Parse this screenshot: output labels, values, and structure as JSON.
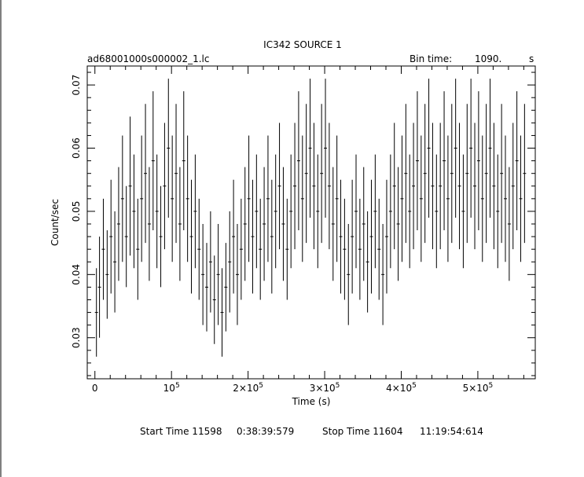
{
  "header": {
    "title": "IC342 SOURCE 1",
    "file": "ad68001000s000002_1.lc",
    "bin_label": "Bin time:",
    "bin_value": "1090.",
    "bin_unit": "s"
  },
  "footer": {
    "start_label": "Start Time 11598",
    "start_time": "0:38:39:579",
    "stop_label": "Stop Time 11604",
    "stop_time": "11:19:54:614"
  },
  "chart_data": {
    "type": "scatter",
    "title": "IC342 SOURCE 1",
    "xlabel": "Time (s)",
    "ylabel": "Count/sec",
    "xlim": [
      -10000,
      575000
    ],
    "ylim": [
      0.0235,
      0.073
    ],
    "x_ticks": [
      {
        "value": 0,
        "label": "0"
      },
      {
        "value": 100000,
        "label": "10",
        "exp": "5"
      },
      {
        "value": 200000,
        "label": "2×10",
        "exp": "5"
      },
      {
        "value": 300000,
        "label": "3×10",
        "exp": "5"
      },
      {
        "value": 400000,
        "label": "4×10",
        "exp": "5"
      },
      {
        "value": 500000,
        "label": "5×10",
        "exp": "5"
      }
    ],
    "y_ticks": [
      {
        "value": 0.03,
        "label": "0.03"
      },
      {
        "value": 0.04,
        "label": "0.04"
      },
      {
        "value": 0.05,
        "label": "0.05"
      },
      {
        "value": 0.06,
        "label": "0.06"
      },
      {
        "value": 0.07,
        "label": "0.07"
      }
    ],
    "grid": false,
    "error_bars": true,
    "series": [
      {
        "x": [
          2000,
          6000,
          11000,
          16000,
          21000,
          26000,
          31000,
          36000,
          41000,
          46000,
          51000,
          56000,
          61000,
          66000,
          71000,
          76000,
          81000,
          86000,
          91000,
          96000,
          101000,
          106000,
          111000,
          116000,
          121000,
          126000,
          131000,
          136000,
          141000,
          146000,
          151000,
          156000,
          161000,
          166000,
          171000,
          176000,
          181000,
          186000,
          191000,
          196000,
          201000,
          206000,
          211000,
          216000,
          221000,
          226000,
          231000,
          236000,
          241000,
          246000,
          251000,
          256000,
          261000,
          266000,
          271000,
          276000,
          281000,
          286000,
          291000,
          296000,
          301000,
          306000,
          311000,
          316000,
          321000,
          326000,
          331000,
          336000,
          341000,
          346000,
          351000,
          356000,
          361000,
          366000,
          371000,
          376000,
          381000,
          386000,
          391000,
          396000,
          401000,
          406000,
          411000,
          416000,
          421000,
          426000,
          431000,
          436000,
          441000,
          446000,
          451000,
          456000,
          461000,
          466000,
          471000,
          476000,
          481000,
          486000,
          491000,
          496000,
          501000,
          506000,
          511000,
          516000,
          521000,
          526000,
          531000,
          536000,
          541000,
          546000,
          551000,
          556000,
          561000
        ],
        "y": [
          0.034,
          0.038,
          0.044,
          0.04,
          0.046,
          0.042,
          0.048,
          0.052,
          0.046,
          0.054,
          0.05,
          0.044,
          0.052,
          0.056,
          0.048,
          0.058,
          0.05,
          0.046,
          0.054,
          0.06,
          0.052,
          0.056,
          0.048,
          0.058,
          0.052,
          0.046,
          0.05,
          0.044,
          0.04,
          0.038,
          0.042,
          0.036,
          0.04,
          0.034,
          0.038,
          0.042,
          0.046,
          0.04,
          0.044,
          0.048,
          0.052,
          0.046,
          0.05,
          0.044,
          0.048,
          0.052,
          0.046,
          0.05,
          0.054,
          0.048,
          0.044,
          0.05,
          0.054,
          0.058,
          0.052,
          0.056,
          0.06,
          0.054,
          0.05,
          0.056,
          0.06,
          0.054,
          0.048,
          0.052,
          0.046,
          0.044,
          0.04,
          0.046,
          0.05,
          0.044,
          0.048,
          0.042,
          0.046,
          0.05,
          0.044,
          0.04,
          0.046,
          0.05,
          0.054,
          0.048,
          0.052,
          0.056,
          0.05,
          0.054,
          0.058,
          0.052,
          0.056,
          0.06,
          0.054,
          0.05,
          0.054,
          0.058,
          0.052,
          0.056,
          0.06,
          0.054,
          0.05,
          0.056,
          0.06,
          0.054,
          0.058,
          0.052,
          0.056,
          0.06,
          0.054,
          0.05,
          0.056,
          0.052,
          0.048,
          0.054,
          0.058,
          0.052,
          0.056
        ],
        "err": [
          0.007,
          0.008,
          0.008,
          0.007,
          0.009,
          0.008,
          0.009,
          0.01,
          0.008,
          0.011,
          0.009,
          0.008,
          0.01,
          0.011,
          0.009,
          0.011,
          0.009,
          0.008,
          0.01,
          0.011,
          0.01,
          0.011,
          0.009,
          0.011,
          0.01,
          0.009,
          0.009,
          0.008,
          0.008,
          0.007,
          0.008,
          0.007,
          0.008,
          0.007,
          0.007,
          0.008,
          0.009,
          0.008,
          0.008,
          0.009,
          0.01,
          0.009,
          0.009,
          0.008,
          0.009,
          0.01,
          0.009,
          0.009,
          0.01,
          0.009,
          0.008,
          0.009,
          0.01,
          0.011,
          0.01,
          0.011,
          0.011,
          0.01,
          0.009,
          0.011,
          0.011,
          0.01,
          0.009,
          0.01,
          0.009,
          0.008,
          0.008,
          0.009,
          0.009,
          0.008,
          0.009,
          0.008,
          0.009,
          0.009,
          0.008,
          0.008,
          0.009,
          0.009,
          0.01,
          0.009,
          0.01,
          0.011,
          0.009,
          0.01,
          0.011,
          0.01,
          0.011,
          0.011,
          0.01,
          0.009,
          0.01,
          0.011,
          0.01,
          0.011,
          0.011,
          0.01,
          0.009,
          0.011,
          0.011,
          0.01,
          0.011,
          0.01,
          0.011,
          0.011,
          0.01,
          0.009,
          0.011,
          0.01,
          0.009,
          0.01,
          0.011,
          0.01,
          0.011
        ]
      }
    ]
  }
}
